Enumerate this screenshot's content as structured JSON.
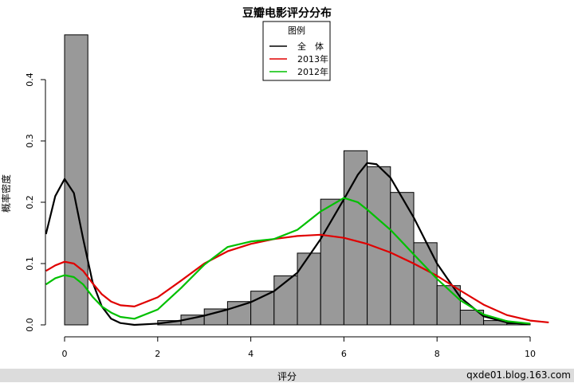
{
  "chart_data": {
    "type": "histogram+density",
    "title": "豆瓣电影评分分布",
    "xlabel": "评分",
    "ylabel": "概率密度",
    "xlim": [
      0,
      10
    ],
    "ylim": [
      0,
      0.45
    ],
    "x_ticks": [
      "0",
      "2",
      "4",
      "6",
      "8",
      "10"
    ],
    "y_ticks": [
      "0.0",
      "0.1",
      "0.2",
      "0.3",
      "0.4"
    ],
    "legend": {
      "title": "图例",
      "placement": "top-center",
      "entries": [
        {
          "label": "全　体",
          "color": "#000000"
        },
        {
          "label": "2013年",
          "color": "#e00000"
        },
        {
          "label": "2012年",
          "color": "#00c000"
        }
      ]
    },
    "histogram": {
      "bin_width": 0.5,
      "fill": "#999999",
      "bins": [
        {
          "x0": 0.0,
          "density": 0.473
        },
        {
          "x0": 0.5,
          "density": 0.0
        },
        {
          "x0": 1.0,
          "density": 0.0
        },
        {
          "x0": 1.5,
          "density": 0.0
        },
        {
          "x0": 2.0,
          "density": 0.007
        },
        {
          "x0": 2.5,
          "density": 0.016
        },
        {
          "x0": 3.0,
          "density": 0.026
        },
        {
          "x0": 3.5,
          "density": 0.038
        },
        {
          "x0": 4.0,
          "density": 0.055
        },
        {
          "x0": 4.5,
          "density": 0.08
        },
        {
          "x0": 5.0,
          "density": 0.117
        },
        {
          "x0": 5.5,
          "density": 0.205
        },
        {
          "x0": 6.0,
          "density": 0.284
        },
        {
          "x0": 6.5,
          "density": 0.258
        },
        {
          "x0": 7.0,
          "density": 0.216
        },
        {
          "x0": 7.5,
          "density": 0.134
        },
        {
          "x0": 8.0,
          "density": 0.064
        },
        {
          "x0": 8.5,
          "density": 0.024
        },
        {
          "x0": 9.0,
          "density": 0.007
        },
        {
          "x0": 9.5,
          "density": 0.002
        }
      ]
    },
    "series": [
      {
        "color": "#000000",
        "points": [
          [
            -0.4,
            0.148
          ],
          [
            -0.2,
            0.21
          ],
          [
            0.0,
            0.238
          ],
          [
            0.2,
            0.215
          ],
          [
            0.4,
            0.14
          ],
          [
            0.6,
            0.07
          ],
          [
            0.8,
            0.03
          ],
          [
            1.0,
            0.01
          ],
          [
            1.2,
            0.003
          ],
          [
            1.5,
            0.0
          ],
          [
            2.0,
            0.002
          ],
          [
            2.5,
            0.007
          ],
          [
            3.0,
            0.015
          ],
          [
            3.5,
            0.025
          ],
          [
            4.0,
            0.037
          ],
          [
            4.5,
            0.055
          ],
          [
            5.0,
            0.085
          ],
          [
            5.5,
            0.14
          ],
          [
            6.0,
            0.205
          ],
          [
            6.3,
            0.245
          ],
          [
            6.5,
            0.264
          ],
          [
            6.7,
            0.262
          ],
          [
            7.0,
            0.24
          ],
          [
            7.5,
            0.175
          ],
          [
            8.0,
            0.1
          ],
          [
            8.5,
            0.045
          ],
          [
            9.0,
            0.014
          ],
          [
            9.5,
            0.004
          ],
          [
            10.0,
            0.001
          ]
        ]
      },
      {
        "color": "#e00000",
        "points": [
          [
            -0.4,
            0.088
          ],
          [
            -0.2,
            0.097
          ],
          [
            0.0,
            0.103
          ],
          [
            0.2,
            0.1
          ],
          [
            0.4,
            0.088
          ],
          [
            0.6,
            0.068
          ],
          [
            0.8,
            0.05
          ],
          [
            1.0,
            0.038
          ],
          [
            1.2,
            0.032
          ],
          [
            1.5,
            0.03
          ],
          [
            2.0,
            0.045
          ],
          [
            2.5,
            0.072
          ],
          [
            3.0,
            0.1
          ],
          [
            3.5,
            0.12
          ],
          [
            4.0,
            0.132
          ],
          [
            4.5,
            0.14
          ],
          [
            5.0,
            0.145
          ],
          [
            5.5,
            0.147
          ],
          [
            6.0,
            0.142
          ],
          [
            6.5,
            0.132
          ],
          [
            7.0,
            0.118
          ],
          [
            7.5,
            0.1
          ],
          [
            8.0,
            0.08
          ],
          [
            8.5,
            0.056
          ],
          [
            9.0,
            0.033
          ],
          [
            9.5,
            0.016
          ],
          [
            10.0,
            0.007
          ],
          [
            10.4,
            0.004
          ]
        ]
      },
      {
        "color": "#00c000",
        "points": [
          [
            -0.4,
            0.066
          ],
          [
            -0.2,
            0.076
          ],
          [
            0.0,
            0.081
          ],
          [
            0.2,
            0.078
          ],
          [
            0.4,
            0.066
          ],
          [
            0.6,
            0.046
          ],
          [
            0.8,
            0.03
          ],
          [
            1.0,
            0.02
          ],
          [
            1.2,
            0.013
          ],
          [
            1.5,
            0.01
          ],
          [
            2.0,
            0.025
          ],
          [
            2.5,
            0.06
          ],
          [
            3.0,
            0.098
          ],
          [
            3.5,
            0.127
          ],
          [
            4.0,
            0.136
          ],
          [
            4.5,
            0.14
          ],
          [
            5.0,
            0.155
          ],
          [
            5.5,
            0.185
          ],
          [
            6.0,
            0.207
          ],
          [
            6.3,
            0.2
          ],
          [
            6.5,
            0.188
          ],
          [
            7.0,
            0.155
          ],
          [
            7.5,
            0.115
          ],
          [
            8.0,
            0.075
          ],
          [
            8.5,
            0.04
          ],
          [
            9.0,
            0.017
          ],
          [
            9.5,
            0.006
          ],
          [
            10.0,
            0.002
          ]
        ]
      }
    ]
  },
  "footer": {
    "credit": "qxde01.blog.163.com"
  }
}
